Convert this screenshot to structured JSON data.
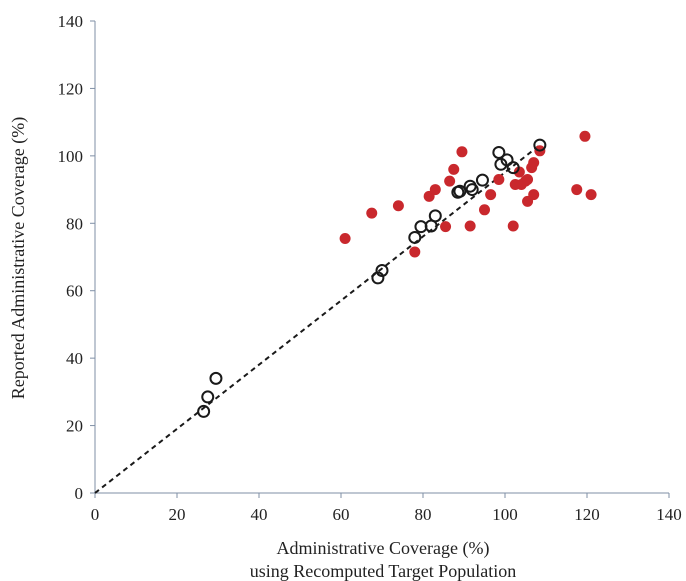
{
  "colors": {
    "reported_fill": "#c9282d",
    "recomputed_stroke": "#1a1a1a",
    "axis": "#7f8fa6",
    "trend": "#1a1a1a"
  },
  "chart_data": {
    "type": "scatter",
    "xlabel_line1": "Administrative Coverage (%)",
    "xlabel_line2": "using Recomputed Target Population",
    "ylabel": "Reported Administrative Coverage (%)",
    "xlim": [
      0,
      140
    ],
    "ylim": [
      0,
      140
    ],
    "xticks": [
      0,
      20,
      40,
      60,
      80,
      100,
      120,
      140
    ],
    "yticks": [
      0,
      20,
      40,
      60,
      80,
      100,
      120,
      140
    ],
    "grid": false,
    "legend": "none",
    "series": [
      {
        "marker": "filled-circle",
        "points": [
          [
            61,
            75.5
          ],
          [
            67.5,
            83
          ],
          [
            74,
            85.2
          ],
          [
            78,
            71.5
          ],
          [
            81.5,
            88
          ],
          [
            83,
            90
          ],
          [
            85.5,
            79
          ],
          [
            86.5,
            92.5
          ],
          [
            87.5,
            96
          ],
          [
            89.5,
            101.2
          ],
          [
            91.5,
            79.2
          ],
          [
            96.5,
            88.5
          ],
          [
            98.5,
            93
          ],
          [
            95,
            84
          ],
          [
            102,
            79.2
          ],
          [
            102.5,
            91.5
          ],
          [
            103.5,
            95.2
          ],
          [
            104,
            91.5
          ],
          [
            105,
            92.5
          ],
          [
            105.5,
            86.5
          ],
          [
            105.5,
            93
          ],
          [
            106.5,
            96.5
          ],
          [
            107,
            88.5
          ],
          [
            107,
            98
          ],
          [
            108.5,
            101.5
          ],
          [
            117.5,
            90
          ],
          [
            119.5,
            105.8
          ],
          [
            121,
            88.5
          ]
        ]
      },
      {
        "marker": "open-circle",
        "points": [
          [
            26.5,
            24.2
          ],
          [
            27.5,
            28.5
          ],
          [
            29.5,
            34
          ],
          [
            69,
            63.8
          ],
          [
            70,
            66
          ],
          [
            78,
            75.8
          ],
          [
            79.5,
            79
          ],
          [
            82,
            79.2
          ],
          [
            83,
            82.2
          ],
          [
            88.5,
            89.2
          ],
          [
            89,
            89.5
          ],
          [
            91.5,
            91
          ],
          [
            92,
            90
          ],
          [
            94.5,
            92.8
          ],
          [
            98.5,
            101
          ],
          [
            99,
            97.5
          ],
          [
            100.5,
            98.8
          ],
          [
            102,
            96.5
          ],
          [
            108.5,
            103.2
          ]
        ]
      }
    ],
    "trendline": {
      "style": "dashed",
      "from": [
        0,
        0
      ],
      "to": [
        108.5,
        103.2
      ]
    }
  }
}
